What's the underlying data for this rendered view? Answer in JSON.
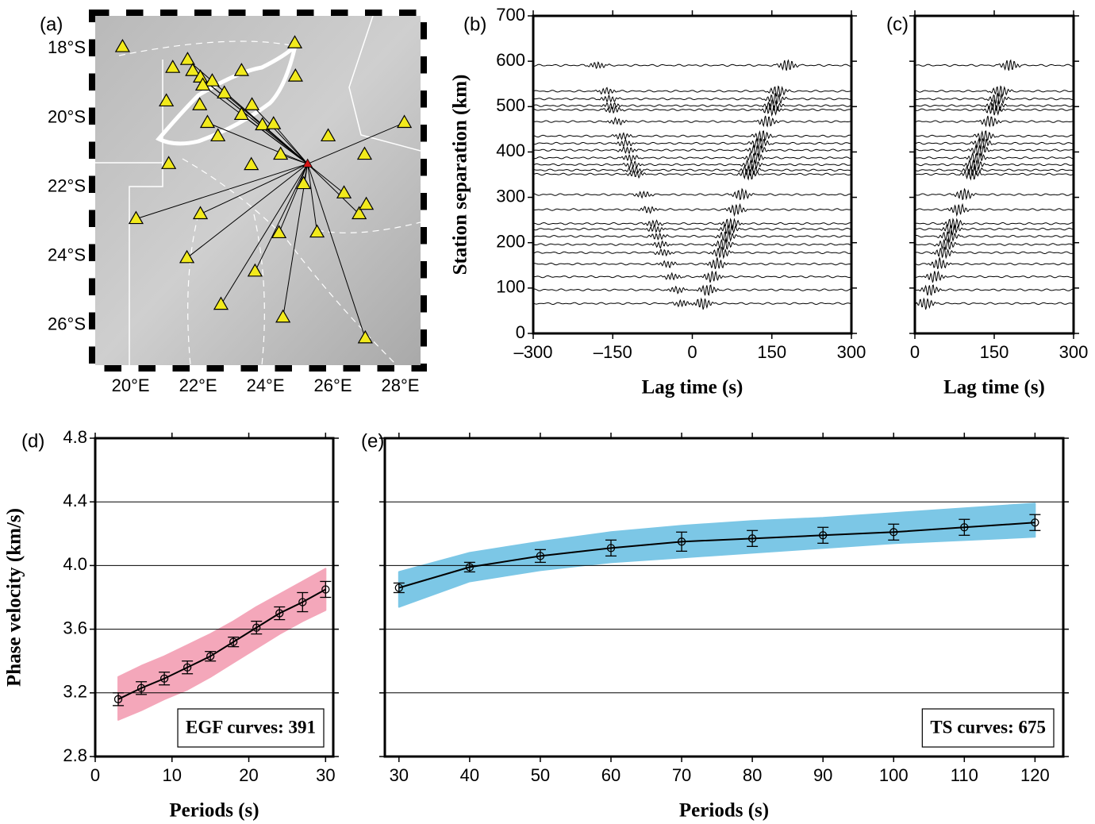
{
  "chart_data": [
    {
      "type": "map",
      "panel_label": "(a)",
      "xlim": [
        18.95,
        28.6
      ],
      "ylim": [
        -27.15,
        -17.05
      ],
      "xticks": [
        {
          "value": 20,
          "label": "20°E"
        },
        {
          "value": 22,
          "label": "22°E"
        },
        {
          "value": 24,
          "label": "24°E"
        },
        {
          "value": 26,
          "label": "26°E"
        },
        {
          "value": 28,
          "label": "28°E"
        }
      ],
      "yticks": [
        {
          "value": -18,
          "label": "18°S"
        },
        {
          "value": -20,
          "label": "20°S"
        },
        {
          "value": -22,
          "label": "22°S"
        },
        {
          "value": -24,
          "label": "24°S"
        },
        {
          "value": -26,
          "label": "26°S"
        }
      ],
      "hub": {
        "x": 25.25,
        "y": -21.33,
        "color": "#d41414"
      },
      "series": [
        {
          "color": "#f2ea1c",
          "linked": true,
          "x": [
            20.16,
            21.67,
            22.07,
            22.68,
            23.69,
            24.52,
            26.96,
            24.4,
            25.53,
            25.13,
            26.33,
            26.78,
            28.12,
            21.69,
            21.84,
            22.07,
            22.42,
            22.14,
            22.78,
            23.6,
            23.29,
            23.91,
            24.24,
            24.45,
            22.28
          ],
          "y": [
            -22.92,
            -24.05,
            -22.78,
            -25.4,
            -24.44,
            -25.77,
            -26.37,
            -23.33,
            -23.31,
            -21.91,
            -22.18,
            -22.78,
            -20.14,
            -18.32,
            -18.64,
            -18.83,
            -18.94,
            -19.06,
            -19.29,
            -19.63,
            -19.91,
            -20.21,
            -20.18,
            -21.06,
            -20.14
          ]
        },
        {
          "color": "#f2ea1c",
          "linked": false,
          "x": [
            19.76,
            24.87,
            21.25,
            23.29,
            24.89,
            21.06,
            22.05,
            22.59,
            25.86,
            21.13,
            23.58,
            26.94,
            26.99
          ],
          "y": [
            -17.95,
            -17.84,
            -18.55,
            -18.64,
            -18.8,
            -19.52,
            -19.63,
            -20.53,
            -20.53,
            -21.33,
            -21.36,
            -21.06,
            -22.51
          ]
        }
      ]
    },
    {
      "type": "record",
      "panel_label": "(b)",
      "xlabel": "Lag time (s)",
      "ylabel": "Station separation (km)",
      "xlim": [
        -300,
        300
      ],
      "ylim": [
        0,
        700
      ],
      "xticks": [
        {
          "value": -300,
          "label": "–300"
        },
        {
          "value": -150,
          "label": "–150"
        },
        0,
        150,
        300
      ],
      "yticks": [
        0,
        100,
        200,
        300,
        400,
        500,
        600,
        700
      ],
      "two_sided": true,
      "color": "#000000",
      "separations": [
        591,
        534,
        517,
        502,
        493,
        467,
        435,
        419,
        404,
        387,
        372,
        360,
        351,
        306,
        273,
        242,
        230,
        214,
        196,
        178,
        153,
        125,
        96,
        66
      ]
    },
    {
      "type": "record",
      "panel_label": "(c)",
      "xlabel": "Lag time (s)",
      "xlim": [
        0,
        300
      ],
      "ylim": [
        0,
        700
      ],
      "xticks": [
        0,
        150,
        300
      ],
      "yticks": [
        0,
        100,
        200,
        300,
        400,
        500,
        600,
        700
      ],
      "two_sided": false,
      "color": "#000000",
      "separations": [
        591,
        534,
        517,
        502,
        493,
        467,
        435,
        419,
        404,
        387,
        372,
        360,
        351,
        306,
        273,
        242,
        230,
        214,
        196,
        178,
        153,
        125,
        96,
        66
      ]
    },
    {
      "type": "dispersion",
      "panel_label": "(d)",
      "xlabel": "Periods (s)",
      "ylabel": "Phase velocity (km/s)",
      "annotation": "EGF curves: 391",
      "xlim": [
        0,
        31
      ],
      "ylim": [
        2.8,
        4.8
      ],
      "xticks": [
        0,
        10,
        20,
        30
      ],
      "yticks": [
        2.8,
        3.2,
        3.6,
        {
          "value": 4,
          "label": "4.0"
        },
        4.4,
        4.8
      ],
      "grid": true,
      "x": [
        3,
        6,
        9,
        12,
        15,
        18,
        21,
        24,
        27,
        30
      ],
      "values": [
        3.16,
        3.23,
        3.29,
        3.36,
        3.43,
        3.52,
        3.61,
        3.7,
        3.77,
        3.85
      ],
      "errors": [
        0.04,
        0.04,
        0.04,
        0.04,
        0.03,
        0.03,
        0.04,
        0.04,
        0.06,
        0.05
      ],
      "color": "#000000",
      "band": {
        "color": "#f4a7ba",
        "lower": [
          3.03,
          3.09,
          3.16,
          3.22,
          3.3,
          3.39,
          3.48,
          3.57,
          3.65,
          3.72
        ],
        "upper": [
          3.3,
          3.37,
          3.43,
          3.5,
          3.57,
          3.65,
          3.74,
          3.82,
          3.9,
          3.98
        ]
      }
    },
    {
      "type": "dispersion",
      "panel_label": "(e)",
      "xlabel": "Periods (s)",
      "annotation": "TS curves: 675",
      "xlim": [
        28,
        124
      ],
      "ylim": [
        2.8,
        4.8
      ],
      "xticks": [
        30,
        40,
        50,
        60,
        70,
        80,
        90,
        100,
        110,
        120
      ],
      "yticks": [
        2.8,
        3.2,
        3.6,
        {
          "value": 4,
          "label": "4.0"
        },
        4.4,
        4.8
      ],
      "grid": true,
      "show_ytick_labels": false,
      "x": [
        30,
        40,
        50,
        60,
        70,
        80,
        90,
        100,
        110,
        120
      ],
      "values": [
        3.86,
        3.99,
        4.06,
        4.11,
        4.15,
        4.17,
        4.19,
        4.21,
        4.24,
        4.27
      ],
      "errors": [
        0.03,
        0.03,
        0.04,
        0.05,
        0.06,
        0.05,
        0.05,
        0.05,
        0.05,
        0.05
      ],
      "color": "#000000",
      "band": {
        "color": "#7cc7e6",
        "lower": [
          3.74,
          3.9,
          3.97,
          4.02,
          4.05,
          4.08,
          4.11,
          4.14,
          4.16,
          4.18
        ],
        "upper": [
          3.96,
          4.08,
          4.15,
          4.21,
          4.25,
          4.28,
          4.3,
          4.33,
          4.36,
          4.39
        ]
      }
    }
  ]
}
